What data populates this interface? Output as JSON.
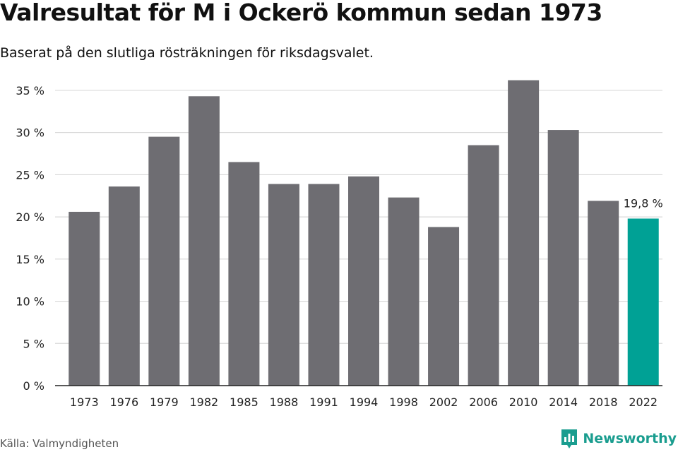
{
  "header": {
    "title": "Valresultat för M i Ockerö kommun sedan 1973",
    "subtitle": "Baserat på den slutliga rösträkningen för riksdagsvalet."
  },
  "footer": {
    "source": "Källa: Valmyndigheten",
    "brand": "Newsworthy",
    "brand_icon": "bar-chart-logo-icon"
  },
  "colors": {
    "bar": "#6e6d72",
    "highlight": "#00a195",
    "grid": "#d9d9d9",
    "axis": "#222222",
    "brand": "#1a9d8f"
  },
  "chart_data": {
    "type": "bar",
    "title": "Valresultat för M i Ockerö kommun sedan 1973",
    "subtitle": "Baserat på den slutliga rösträkningen för riksdagsvalet.",
    "xlabel": "",
    "ylabel": "",
    "categories": [
      "1973",
      "1976",
      "1979",
      "1982",
      "1985",
      "1988",
      "1991",
      "1994",
      "1998",
      "2002",
      "2006",
      "2010",
      "2014",
      "2018",
      "2022"
    ],
    "values": [
      20.6,
      23.6,
      29.5,
      34.3,
      26.5,
      23.9,
      23.9,
      24.8,
      22.3,
      18.8,
      28.5,
      36.2,
      30.3,
      21.9,
      19.8
    ],
    "ylim": [
      0,
      36.5
    ],
    "yticks": [
      0,
      5,
      10,
      15,
      20,
      25,
      30,
      35
    ],
    "ytick_labels": [
      "0 %",
      "5 %",
      "10 %",
      "15 %",
      "20 %",
      "25 %",
      "30 %",
      "35 %"
    ],
    "highlight_index": 14,
    "annotation": "19,8 %",
    "grid": true,
    "legend": "none"
  }
}
